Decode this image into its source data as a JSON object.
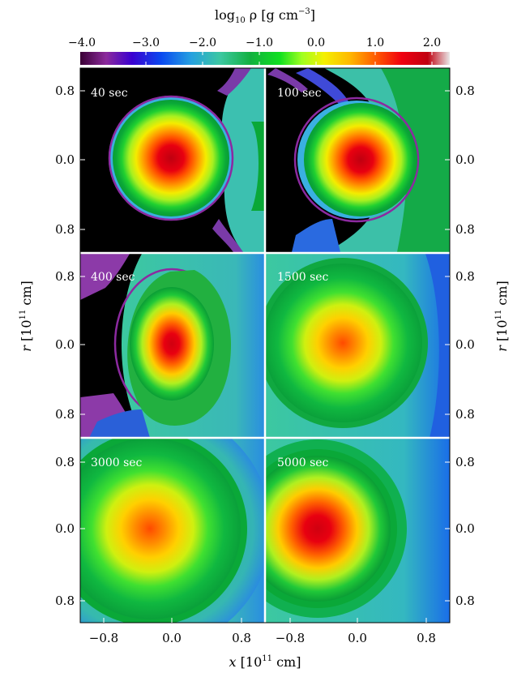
{
  "colorbar": {
    "title_main": "log",
    "title_sub": "10",
    "title_rest": " ρ [g cm",
    "title_exp": "−3",
    "title_close": "]",
    "ticks": [
      "−4.0",
      "−3.0",
      "−2.0",
      "−1.0",
      "0.0",
      "1.0",
      "2.0"
    ]
  },
  "panels": [
    {
      "label": "40 sec"
    },
    {
      "label": "100 sec"
    },
    {
      "label": "400 sec"
    },
    {
      "label": "1500 sec"
    },
    {
      "label": "3000 sec"
    },
    {
      "label": "5000 sec"
    }
  ],
  "axes": {
    "y_ticks": [
      "0.8",
      "0.0",
      "0.8"
    ],
    "x_ticks": [
      "−0.8",
      "0.0",
      "0.8",
      "−0.8",
      "0.0",
      "0.8"
    ],
    "y_label_main": "r",
    "y_label_unit": " [10",
    "y_label_exp": "11",
    "y_label_close": " cm]",
    "x_label_main": "x",
    "x_label_unit": " [10",
    "x_label_exp": "11",
    "x_label_close": " cm]"
  },
  "colors": {
    "background_void": "#000000",
    "envelope": "#3cc8a0",
    "outer_shell": "#0aa837",
    "core": "#d40012"
  }
}
